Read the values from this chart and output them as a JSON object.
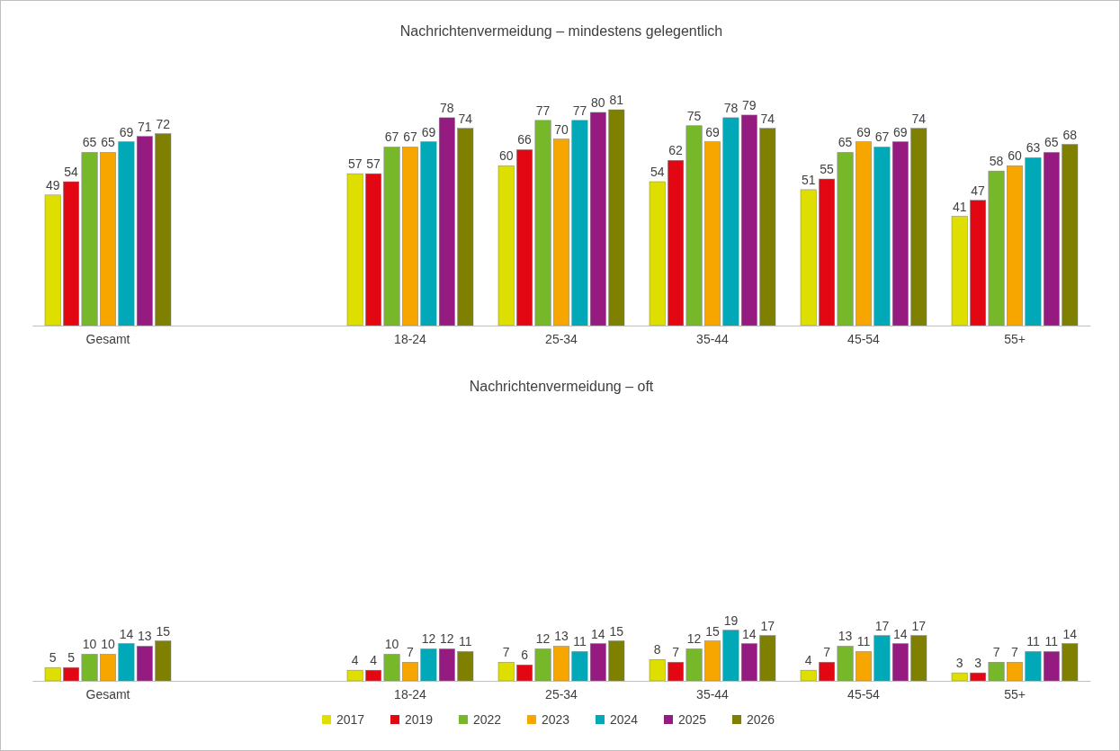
{
  "chart_data": [
    {
      "type": "bar",
      "title": "Nachrichtenvermeidung – mindestens gelegentlich",
      "categories": [
        "Gesamt",
        null,
        "18-24",
        "25-34",
        "35-44",
        "45-54",
        "55+"
      ],
      "tick_labels": "x",
      "data_labels": true,
      "legend": false,
      "series": [
        {
          "color": "#dede00",
          "values": [
            49,
            null,
            57,
            60,
            54,
            51,
            41
          ]
        },
        {
          "color": "#e30613",
          "values": [
            54,
            null,
            57,
            66,
            62,
            55,
            47
          ]
        },
        {
          "color": "#77b82a",
          "values": [
            65,
            null,
            67,
            77,
            75,
            65,
            58
          ]
        },
        {
          "color": "#f7a600",
          "values": [
            65,
            null,
            67,
            70,
            69,
            69,
            60
          ]
        },
        {
          "color": "#00a8b8",
          "values": [
            69,
            null,
            69,
            77,
            78,
            67,
            63
          ]
        },
        {
          "color": "#951b81",
          "values": [
            71,
            null,
            78,
            80,
            79,
            69,
            65
          ]
        },
        {
          "color": "#7f7f00",
          "values": [
            72,
            null,
            74,
            81,
            74,
            74,
            68
          ]
        }
      ]
    },
    {
      "type": "bar",
      "title": "Nachrichtenvermeidung – oft",
      "categories": [
        "Gesamt",
        null,
        "18-24",
        "25-34",
        "35-44",
        "45-54",
        "55+"
      ],
      "tick_labels": "x",
      "data_labels": true,
      "legend": "bottom",
      "series": [
        {
          "name": "2017",
          "color": "#dede00",
          "values": [
            5,
            null,
            4,
            7,
            8,
            4,
            3
          ]
        },
        {
          "name": "2019",
          "color": "#e30613",
          "values": [
            5,
            null,
            4,
            6,
            7,
            7,
            3
          ]
        },
        {
          "name": "2022",
          "color": "#77b82a",
          "values": [
            10,
            null,
            10,
            12,
            12,
            13,
            7
          ]
        },
        {
          "name": "2023",
          "color": "#f7a600",
          "values": [
            10,
            null,
            7,
            13,
            15,
            11,
            7
          ]
        },
        {
          "name": "2024",
          "color": "#00a8b8",
          "values": [
            14,
            null,
            12,
            11,
            19,
            17,
            11
          ]
        },
        {
          "name": "2025",
          "color": "#951b81",
          "values": [
            13,
            null,
            12,
            14,
            14,
            14,
            11
          ]
        },
        {
          "name": "2026",
          "color": "#7f7f00",
          "values": [
            15,
            null,
            11,
            15,
            17,
            17,
            14
          ]
        }
      ]
    }
  ]
}
